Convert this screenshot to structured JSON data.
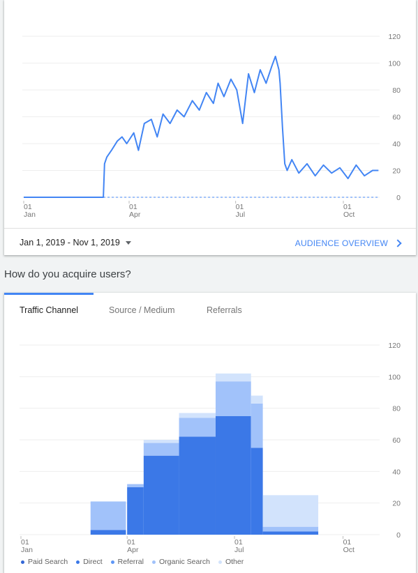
{
  "audience_card": {
    "date_range": "Jan 1, 2019 - Nov 1, 2019",
    "link_label": "AUDIENCE OVERVIEW",
    "accent_color": "#4285f4"
  },
  "acquisition": {
    "section_title": "How do you acquire users?",
    "tabs": [
      {
        "label": "Traffic Channel",
        "active": true
      },
      {
        "label": "Source / Medium",
        "active": false
      },
      {
        "label": "Referrals",
        "active": false
      }
    ],
    "legend": [
      {
        "label": "Paid Search",
        "color": "#3367d6"
      },
      {
        "label": "Direct",
        "color": "#3b78e7"
      },
      {
        "label": "Referral",
        "color": "#5e97f6"
      },
      {
        "label": "Organic Search",
        "color": "#a1c2fa"
      },
      {
        "label": "Other",
        "color": "#d2e3fc"
      }
    ]
  },
  "chart_data": [
    {
      "type": "line",
      "title": "",
      "xlabel": "",
      "ylabel": "",
      "ylim": [
        0,
        120
      ],
      "xlim": [
        "2019-01-01",
        "2019-11-01"
      ],
      "y_ticks": [
        "0",
        "20",
        "40",
        "60",
        "80",
        "100",
        "120"
      ],
      "x_ticks": [
        {
          "day": "01",
          "month": "Jan"
        },
        {
          "day": "01",
          "month": "Apr"
        },
        {
          "day": "01",
          "month": "Jul"
        },
        {
          "day": "01",
          "month": "Oct"
        }
      ],
      "grid": true,
      "color": "#4285f4",
      "series": [
        {
          "name": "",
          "points": [
            [
              "2019-01-01",
              0
            ],
            [
              "2019-03-10",
              0
            ],
            [
              "2019-03-11",
              25
            ],
            [
              "2019-03-13",
              30
            ],
            [
              "2019-03-17",
              35
            ],
            [
              "2019-03-22",
              42
            ],
            [
              "2019-03-26",
              45
            ],
            [
              "2019-03-30",
              40
            ],
            [
              "2019-04-05",
              48
            ],
            [
              "2019-04-09",
              35
            ],
            [
              "2019-04-14",
              55
            ],
            [
              "2019-04-20",
              58
            ],
            [
              "2019-04-25",
              45
            ],
            [
              "2019-04-30",
              62
            ],
            [
              "2019-05-06",
              55
            ],
            [
              "2019-05-12",
              65
            ],
            [
              "2019-05-18",
              60
            ],
            [
              "2019-05-25",
              72
            ],
            [
              "2019-05-31",
              65
            ],
            [
              "2019-06-06",
              78
            ],
            [
              "2019-06-12",
              70
            ],
            [
              "2019-06-16",
              85
            ],
            [
              "2019-06-21",
              75
            ],
            [
              "2019-06-27",
              88
            ],
            [
              "2019-07-02",
              80
            ],
            [
              "2019-07-07",
              55
            ],
            [
              "2019-07-12",
              92
            ],
            [
              "2019-07-17",
              78
            ],
            [
              "2019-07-22",
              95
            ],
            [
              "2019-07-27",
              85
            ],
            [
              "2019-08-01",
              98
            ],
            [
              "2019-08-04",
              105
            ],
            [
              "2019-08-07",
              95
            ],
            [
              "2019-08-08",
              85
            ],
            [
              "2019-08-10",
              52
            ],
            [
              "2019-08-12",
              25
            ],
            [
              "2019-08-14",
              20
            ],
            [
              "2019-08-18",
              28
            ],
            [
              "2019-08-24",
              18
            ],
            [
              "2019-08-31",
              25
            ],
            [
              "2019-09-07",
              16
            ],
            [
              "2019-09-14",
              24
            ],
            [
              "2019-09-21",
              18
            ],
            [
              "2019-09-28",
              22
            ],
            [
              "2019-10-05",
              14
            ],
            [
              "2019-10-12",
              24
            ],
            [
              "2019-10-19",
              16
            ],
            [
              "2019-10-26",
              20
            ],
            [
              "2019-10-31",
              20
            ]
          ]
        }
      ]
    },
    {
      "type": "bar",
      "stacked": true,
      "title": "",
      "xlabel": "",
      "ylabel": "",
      "ylim": [
        0,
        120
      ],
      "xlim": [
        "2019-01-01",
        "2019-11-01"
      ],
      "y_ticks": [
        "0",
        "20",
        "40",
        "60",
        "80",
        "100",
        "120"
      ],
      "x_ticks": [
        {
          "day": "01",
          "month": "Jan"
        },
        {
          "day": "01",
          "month": "Apr"
        },
        {
          "day": "01",
          "month": "Jul"
        },
        {
          "day": "01",
          "month": "Oct"
        }
      ],
      "grid": true,
      "legend_position": "bottom",
      "periods": [
        {
          "start": "2019-03-01",
          "end": "2019-03-31",
          "direct": 3,
          "referral": 0,
          "organic": 18,
          "other": 0
        },
        {
          "start": "2019-04-01",
          "end": "2019-04-15",
          "direct": 30,
          "referral": 0,
          "organic": 2,
          "other": 0
        },
        {
          "start": "2019-04-15",
          "end": "2019-05-15",
          "direct": 50,
          "referral": 0,
          "organic": 8,
          "other": 2
        },
        {
          "start": "2019-05-15",
          "end": "2019-06-15",
          "direct": 62,
          "referral": 0,
          "organic": 12,
          "other": 3
        },
        {
          "start": "2019-06-15",
          "end": "2019-07-15",
          "direct": 75,
          "referral": 0,
          "organic": 22,
          "other": 5
        },
        {
          "start": "2019-07-15",
          "end": "2019-07-25",
          "direct": 55,
          "referral": 0,
          "organic": 28,
          "other": 5
        },
        {
          "start": "2019-07-25",
          "end": "2019-09-10",
          "direct": 2,
          "referral": 0,
          "organic": 3,
          "other": 20
        }
      ]
    }
  ]
}
